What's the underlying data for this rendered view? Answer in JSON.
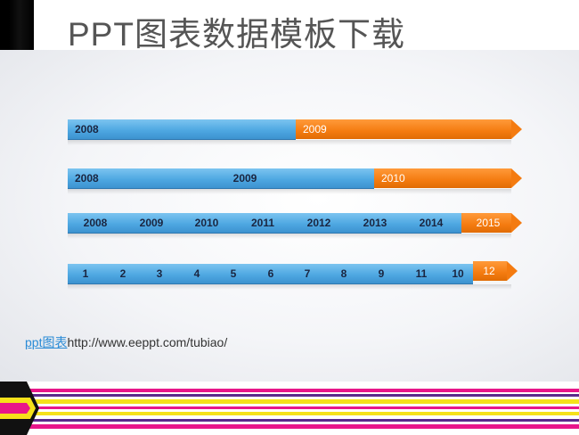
{
  "title": "PPT图表数据模板下载",
  "footer": {
    "prefix": "ppt图表",
    "url": "http://www.eeppt.com/tubiao/"
  },
  "colors": {
    "blue": "#4fa8e2",
    "orange": "#f47b10"
  },
  "timelines": [
    {
      "blue_labels": [
        "2008"
      ],
      "orange_label": "2009"
    },
    {
      "blue_labels": [
        "2008",
        "2009"
      ],
      "orange_label": "2010"
    },
    {
      "blue_labels": [
        "2008",
        "2009",
        "2010",
        "2011",
        "2012",
        "2013",
        "2014"
      ],
      "orange_label": "2015"
    },
    {
      "blue_labels": [
        "1",
        "2",
        "3",
        "4",
        "5",
        "6",
        "7",
        "8",
        "9",
        "11",
        "10"
      ],
      "orange_label": "12"
    }
  ]
}
